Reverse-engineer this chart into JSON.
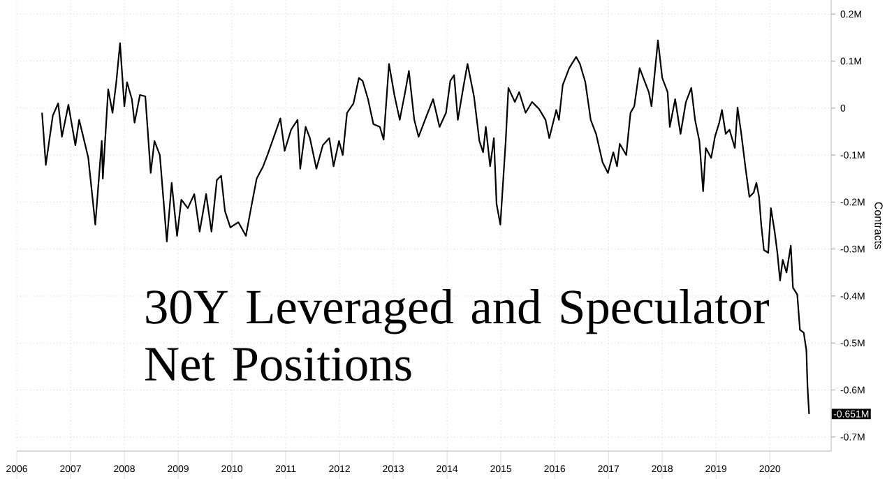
{
  "chart_data": {
    "type": "line",
    "title": "30Y Leveraged and Speculator Net Positions",
    "ylabel": "Contracts",
    "color": "#000000",
    "grid": true,
    "x": [
      2006.47,
      2006.54,
      2006.67,
      2006.77,
      2006.84,
      2006.96,
      2007.09,
      2007.16,
      2007.33,
      2007.46,
      2007.5,
      2007.58,
      2007.6,
      2007.7,
      2007.78,
      2007.85,
      2007.92,
      2008.0,
      2008.05,
      2008.14,
      2008.19,
      2008.29,
      2008.39,
      2008.49,
      2008.56,
      2008.66,
      2008.79,
      2008.88,
      2008.98,
      2009.06,
      2009.18,
      2009.3,
      2009.4,
      2009.52,
      2009.62,
      2009.72,
      2009.8,
      2009.87,
      2009.97,
      2010.12,
      2010.26,
      2010.36,
      2010.46,
      2010.58,
      2010.66,
      2010.78,
      2010.9,
      2010.98,
      2011.1,
      2011.22,
      2011.27,
      2011.37,
      2011.45,
      2011.57,
      2011.69,
      2011.81,
      2011.89,
      2011.99,
      2012.06,
      2012.14,
      2012.26,
      2012.36,
      2012.43,
      2012.53,
      2012.63,
      2012.75,
      2012.82,
      2012.92,
      2013.02,
      2013.12,
      2013.22,
      2013.29,
      2013.39,
      2013.47,
      2013.61,
      2013.74,
      2013.86,
      2013.98,
      2014.06,
      2014.13,
      2014.2,
      2014.3,
      2014.38,
      2014.5,
      2014.6,
      2014.67,
      2014.72,
      2014.8,
      2014.87,
      2014.92,
      2014.99,
      2015.09,
      2015.14,
      2015.26,
      2015.34,
      2015.46,
      2015.58,
      2015.71,
      2015.83,
      2015.9,
      2016.03,
      2016.08,
      2016.15,
      2016.27,
      2016.4,
      2016.47,
      2016.57,
      2016.67,
      2016.77,
      2016.89,
      2016.99,
      2017.09,
      2017.16,
      2017.21,
      2017.33,
      2017.41,
      2017.48,
      2017.58,
      2017.68,
      2017.75,
      2017.8,
      2017.92,
      2018.0,
      2018.1,
      2018.14,
      2018.24,
      2018.34,
      2018.44,
      2018.54,
      2018.61,
      2018.69,
      2018.76,
      2018.81,
      2018.91,
      2018.98,
      2019.06,
      2019.11,
      2019.18,
      2019.25,
      2019.35,
      2019.4,
      2019.47,
      2019.55,
      2019.62,
      2019.7,
      2019.75,
      2019.8,
      2019.84,
      2019.89,
      2019.97,
      2020.02,
      2020.09,
      2020.14,
      2020.19,
      2020.24,
      2020.31,
      2020.39,
      2020.43,
      2020.51,
      2020.56,
      2020.63,
      2020.68,
      2020.7,
      2020.73
    ],
    "values": [
      -0.01,
      -0.121,
      -0.016,
      0.01,
      -0.061,
      0.007,
      -0.079,
      -0.025,
      -0.106,
      -0.248,
      -0.189,
      -0.07,
      -0.15,
      0.04,
      -0.01,
      0.055,
      0.138,
      0.004,
      0.055,
      0.019,
      -0.031,
      0.028,
      0.025,
      -0.138,
      -0.07,
      -0.1,
      -0.284,
      -0.159,
      -0.272,
      -0.195,
      -0.213,
      -0.183,
      -0.263,
      -0.183,
      -0.263,
      -0.153,
      -0.144,
      -0.219,
      -0.254,
      -0.243,
      -0.272,
      -0.21,
      -0.15,
      -0.124,
      -0.1,
      -0.061,
      -0.022,
      -0.091,
      -0.046,
      -0.025,
      -0.129,
      -0.04,
      -0.064,
      -0.129,
      -0.079,
      -0.064,
      -0.124,
      -0.07,
      -0.1,
      -0.01,
      0.01,
      0.064,
      0.058,
      0.019,
      -0.034,
      -0.04,
      -0.067,
      0.094,
      0.028,
      -0.025,
      0.034,
      0.079,
      -0.025,
      -0.061,
      -0.019,
      0.019,
      -0.04,
      -0.01,
      0.058,
      0.07,
      -0.025,
      0.043,
      0.094,
      0.025,
      -0.07,
      -0.094,
      -0.04,
      -0.124,
      -0.064,
      -0.204,
      -0.248,
      -0.07,
      0.043,
      0.013,
      0.034,
      -0.01,
      0.013,
      -0.002,
      -0.025,
      -0.064,
      -0.004,
      -0.025,
      0.049,
      0.085,
      0.109,
      0.094,
      0.055,
      -0.025,
      -0.055,
      -0.115,
      -0.138,
      -0.094,
      -0.124,
      -0.076,
      -0.1,
      -0.01,
      0.004,
      0.085,
      0.055,
      0.034,
      0.004,
      0.144,
      0.064,
      0.034,
      -0.04,
      0.019,
      -0.055,
      0.013,
      0.043,
      -0.025,
      -0.07,
      -0.177,
      -0.085,
      -0.106,
      -0.061,
      -0.031,
      -0.004,
      -0.055,
      -0.046,
      -0.085,
      0.001,
      -0.055,
      -0.129,
      -0.189,
      -0.18,
      -0.159,
      -0.189,
      -0.248,
      -0.302,
      -0.308,
      -0.213,
      -0.263,
      -0.308,
      -0.367,
      -0.323,
      -0.35,
      -0.293,
      -0.382,
      -0.397,
      -0.472,
      -0.478,
      -0.516,
      -0.591,
      -0.651
    ],
    "xlim": [
      2006,
      2021.14
    ],
    "ylim": [
      -0.73,
      0.23
    ],
    "xticks": [
      2006,
      2007,
      2008,
      2009,
      2010,
      2011,
      2012,
      2013,
      2014,
      2015,
      2016,
      2017,
      2018,
      2019,
      2020
    ],
    "yticks": [
      {
        "value": 0.2,
        "label": "0.2M"
      },
      {
        "value": 0.1,
        "label": "0.1M"
      },
      0,
      {
        "value": -0.1,
        "label": "-0.1M"
      },
      {
        "value": -0.2,
        "label": "-0.2M"
      },
      {
        "value": -0.3,
        "label": "-0.3M"
      },
      {
        "value": -0.4,
        "label": "-0.4M"
      },
      {
        "value": -0.5,
        "label": "-0.5M"
      },
      {
        "value": -0.6,
        "label": "-0.6M"
      },
      {
        "value": -0.7,
        "label": "-0.7M"
      }
    ],
    "annotations": [
      {
        "text": "-0.651M",
        "x": 2020.73,
        "y": -0.651
      }
    ]
  }
}
